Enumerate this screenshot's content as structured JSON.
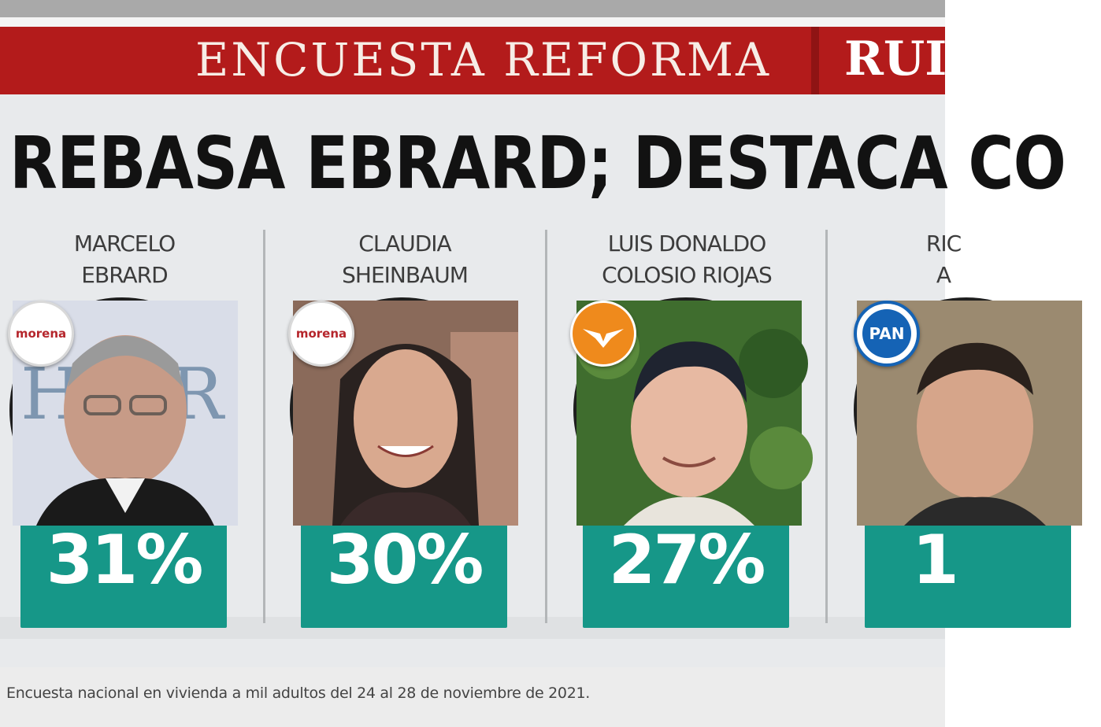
{
  "banner": {
    "title": "ENCUESTA REFORMA",
    "right_text": "RUI"
  },
  "headline": "REBASA EBRARD; DESTACA CO",
  "candidates": [
    {
      "name_line1": "MARCELO",
      "name_line2": "EBRARD",
      "party": "morena",
      "percent": "31%",
      "percent_value": 31
    },
    {
      "name_line1": "CLAUDIA",
      "name_line2": "SHEINBAUM",
      "party": "morena",
      "percent": "30%",
      "percent_value": 30
    },
    {
      "name_line1": "LUIS DONALDO",
      "name_line2": "COLOSIO RIOJAS",
      "party": "movimiento-ciudadano",
      "percent": "27%",
      "percent_value": 27
    },
    {
      "name_line1": "RIC",
      "name_line2": "A",
      "party": "PAN",
      "percent": "1",
      "percent_value": null
    }
  ],
  "footnote": "Encuesta nacional en vivienda a mil adultos del 24 al 28 de noviembre de 2021."
}
